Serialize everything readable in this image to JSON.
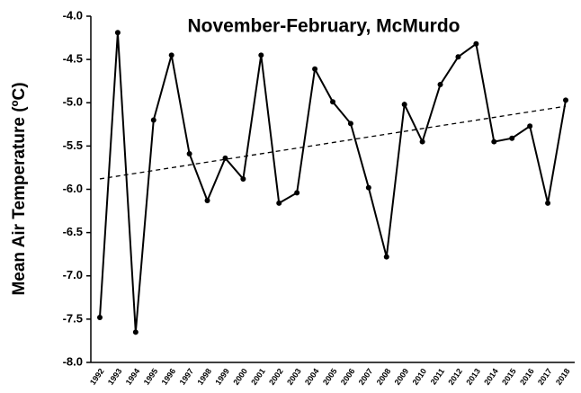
{
  "chart_data": {
    "type": "line",
    "title": "November-February, McMurdo",
    "y_label": "Mean Air Temperature (ºC)",
    "categories": [
      "1992",
      "1993",
      "1994",
      "1995",
      "1996",
      "1997",
      "1998",
      "1999",
      "2000",
      "2001",
      "2002",
      "2003",
      "2004",
      "2005",
      "2006",
      "2007",
      "2008",
      "2009",
      "2010",
      "2011",
      "2012",
      "2013",
      "2014",
      "2015",
      "2016",
      "2017",
      "2018"
    ],
    "series": [
      {
        "color": "#000000",
        "values": [
          -7.48,
          -4.19,
          -7.65,
          -5.2,
          -4.45,
          -5.59,
          -6.13,
          -5.64,
          -5.88,
          -4.45,
          -6.16,
          -6.04,
          -4.61,
          -4.99,
          -5.24,
          -5.98,
          -6.78,
          -5.02,
          -5.45,
          -4.79,
          -4.47,
          -4.32,
          -5.45,
          -5.41,
          -5.27,
          -6.16,
          -4.97
        ]
      }
    ],
    "trend_values": [
      -5.88,
      -5.04
    ],
    "ylim": [
      -8,
      -4
    ],
    "yticks": [
      {
        "value": -4,
        "label": "-4.0"
      },
      -4.5,
      {
        "value": -5,
        "label": "-5.0"
      },
      -5.5,
      {
        "value": -6,
        "label": "-6.0"
      },
      -6.5,
      {
        "value": -7,
        "label": "-7.0"
      },
      -7.5,
      {
        "value": -8,
        "label": "-8.0"
      }
    ]
  }
}
